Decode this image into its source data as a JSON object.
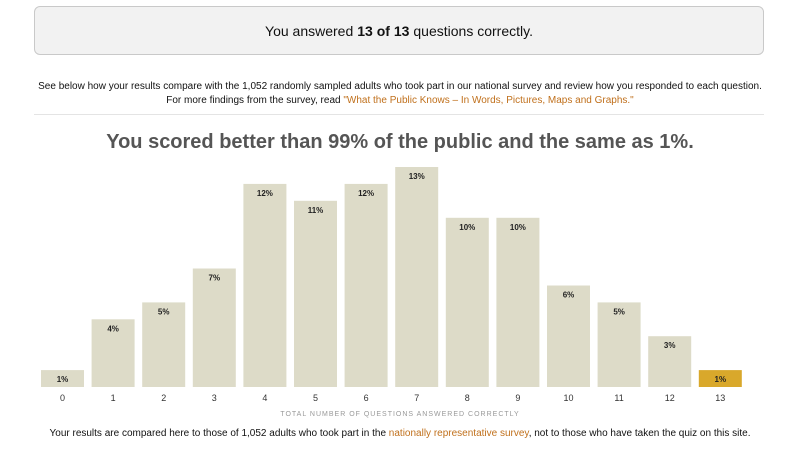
{
  "score": {
    "prefix": "You answered",
    "result": "13 of 13",
    "suffix": "questions correctly."
  },
  "intro": {
    "text": "See below how your results compare with the 1,052 randomly sampled adults who took part in our national survey and review how you responded to each question. For more findings from the survey, read ",
    "link": "\"What the Public Knows – In Words, Pictures, Maps and Graphs.\""
  },
  "headline": "You scored better than 99% of the public and the same as 1%.",
  "chart_data": {
    "type": "bar",
    "categories": [
      "0",
      "1",
      "2",
      "3",
      "4",
      "5",
      "6",
      "7",
      "8",
      "9",
      "10",
      "11",
      "12",
      "13"
    ],
    "values": [
      1,
      4,
      5,
      7,
      12,
      11,
      12,
      13,
      10,
      10,
      6,
      5,
      3,
      1
    ],
    "value_labels": [
      "1%",
      "4%",
      "5%",
      "7%",
      "12%",
      "11%",
      "12%",
      "13%",
      "10%",
      "10%",
      "6%",
      "5%",
      "3%",
      "1%"
    ],
    "xlabel": "TOTAL NUMBER OF QUESTIONS ANSWERED CORRECTLY",
    "ylim": [
      0,
      13
    ],
    "highlight_category": "13",
    "colors": {
      "bar": "#dddbc8",
      "highlight": "#d9a82b"
    }
  },
  "footer": {
    "prefix": "Your results are compared here to those of 1,052 adults who took part in the ",
    "link": "nationally representative survey",
    "suffix": ", not to those who have taken the quiz on this site."
  }
}
